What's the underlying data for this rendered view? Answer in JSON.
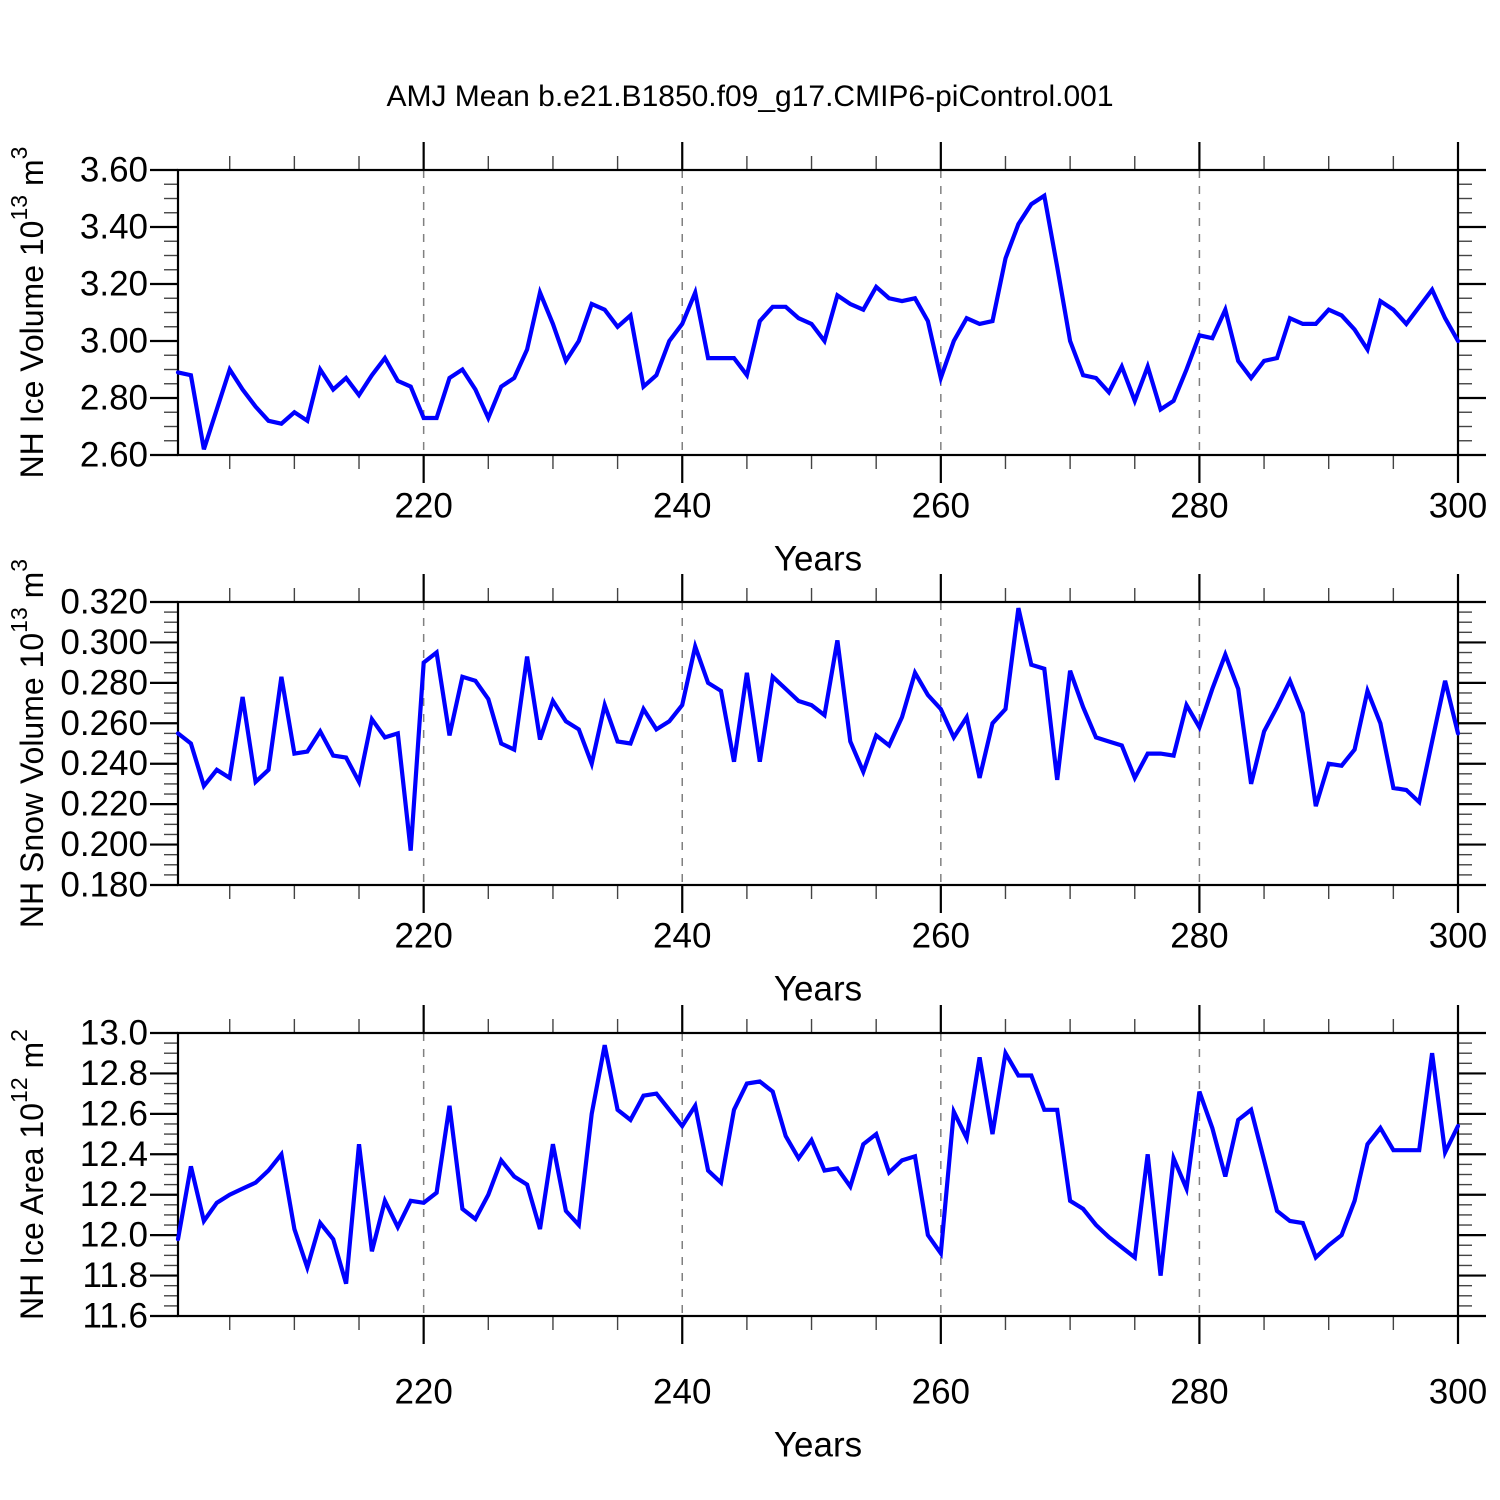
{
  "figure": {
    "title": "AMJ Mean b.e21.B1850.f09_g17.CMIP6-piControl.001",
    "background": "#ffffff",
    "line_color": "#0000ff",
    "gridline_color": "#808080",
    "axis_color": "#000000"
  },
  "chart_data": [
    {
      "id": "nh-ice-volume",
      "type": "line",
      "title": "",
      "xlabel": "Years",
      "ylabel": "NH Ice Volume 10^13 m^3",
      "ylabel_parts": [
        {
          "t": "NH Ice Volume 10",
          "sup": false
        },
        {
          "t": "13",
          "sup": true
        },
        {
          "t": " m",
          "sup": false
        },
        {
          "t": "3",
          "sup": true
        }
      ],
      "xlim": [
        201,
        300
      ],
      "ylim": [
        2.6,
        3.6
      ],
      "y_major_step": 0.2,
      "y_minor_step": 0.05,
      "x_minor_step": 5,
      "grid": "vertical-dashed",
      "x_gridlines": [
        220,
        240,
        260,
        280
      ],
      "xticks": [
        {
          "label": "220",
          "year": 220
        },
        {
          "label": "240",
          "year": 240
        },
        {
          "label": "260",
          "year": 260
        },
        {
          "label": "280",
          "year": 280
        },
        {
          "label": "300",
          "year": 300
        }
      ],
      "yticks": [
        {
          "label": "3.60",
          "value": 3.6
        },
        {
          "label": "3.40",
          "value": 3.4
        },
        {
          "label": "3.20",
          "value": 3.2
        },
        {
          "label": "3.00",
          "value": 3.0
        },
        {
          "label": "2.80",
          "value": 2.8
        },
        {
          "label": "2.60",
          "value": 2.6
        }
      ],
      "years_start": 201,
      "years_end": 300,
      "values": [
        2.89,
        2.88,
        2.62,
        2.76,
        2.9,
        2.83,
        2.77,
        2.72,
        2.71,
        2.75,
        2.72,
        2.9,
        2.83,
        2.87,
        2.81,
        2.88,
        2.94,
        2.86,
        2.84,
        2.73,
        2.73,
        2.87,
        2.9,
        2.83,
        2.73,
        2.84,
        2.87,
        2.97,
        3.17,
        3.06,
        2.93,
        3.0,
        3.13,
        3.11,
        3.05,
        3.09,
        2.84,
        2.88,
        3.0,
        3.06,
        3.17,
        2.94,
        2.94,
        2.94,
        2.88,
        3.07,
        3.12,
        3.12,
        3.08,
        3.06,
        3.0,
        3.16,
        3.13,
        3.11,
        3.19,
        3.15,
        3.14,
        3.15,
        3.07,
        2.87,
        3.0,
        3.08,
        3.06,
        3.07,
        3.29,
        3.41,
        3.48,
        3.51,
        3.26,
        3.0,
        2.88,
        2.87,
        2.82,
        2.91,
        2.79,
        2.91,
        2.76,
        2.79,
        2.9,
        3.02,
        3.01,
        3.11,
        2.93,
        2.87,
        2.93,
        2.94,
        3.08,
        3.06,
        3.06,
        3.11,
        3.09,
        3.04,
        2.97,
        3.14,
        3.11,
        3.06,
        3.12,
        3.18,
        3.08,
        3.0
      ]
    },
    {
      "id": "nh-snow-volume",
      "type": "line",
      "title": "",
      "xlabel": "Years",
      "ylabel": "NH Snow Volume 10^13 m^3",
      "ylabel_parts": [
        {
          "t": "NH Snow Volume 10",
          "sup": false
        },
        {
          "t": "13",
          "sup": true
        },
        {
          "t": " m",
          "sup": false
        },
        {
          "t": "3",
          "sup": true
        }
      ],
      "xlim": [
        201,
        300
      ],
      "ylim": [
        0.18,
        0.32
      ],
      "y_major_step": 0.02,
      "y_minor_step": 0.005,
      "x_minor_step": 5,
      "grid": "vertical-dashed",
      "x_gridlines": [
        220,
        240,
        260,
        280
      ],
      "xticks": [
        {
          "label": "220",
          "year": 220
        },
        {
          "label": "240",
          "year": 240
        },
        {
          "label": "260",
          "year": 260
        },
        {
          "label": "280",
          "year": 280
        },
        {
          "label": "300",
          "year": 300
        }
      ],
      "yticks": [
        {
          "label": "0.320",
          "value": 0.32
        },
        {
          "label": "0.300",
          "value": 0.3
        },
        {
          "label": "0.280",
          "value": 0.28
        },
        {
          "label": "0.260",
          "value": 0.26
        },
        {
          "label": "0.240",
          "value": 0.24
        },
        {
          "label": "0.220",
          "value": 0.22
        },
        {
          "label": "0.200",
          "value": 0.2
        },
        {
          "label": "0.180",
          "value": 0.18
        }
      ],
      "years_start": 201,
      "years_end": 300,
      "values": [
        0.255,
        0.25,
        0.229,
        0.237,
        0.233,
        0.273,
        0.231,
        0.237,
        0.283,
        0.245,
        0.246,
        0.256,
        0.244,
        0.243,
        0.231,
        0.262,
        0.253,
        0.255,
        0.197,
        0.29,
        0.295,
        0.254,
        0.283,
        0.281,
        0.272,
        0.25,
        0.247,
        0.293,
        0.252,
        0.271,
        0.261,
        0.257,
        0.24,
        0.269,
        0.251,
        0.25,
        0.267,
        0.257,
        0.261,
        0.269,
        0.298,
        0.28,
        0.276,
        0.241,
        0.285,
        0.241,
        0.283,
        0.277,
        0.271,
        0.269,
        0.264,
        0.301,
        0.251,
        0.236,
        0.254,
        0.249,
        0.263,
        0.285,
        0.274,
        0.267,
        0.253,
        0.263,
        0.233,
        0.26,
        0.267,
        0.317,
        0.289,
        0.287,
        0.232,
        0.286,
        0.268,
        0.253,
        0.251,
        0.249,
        0.233,
        0.245,
        0.245,
        0.244,
        0.269,
        0.258,
        0.277,
        0.294,
        0.277,
        0.23,
        0.256,
        0.268,
        0.281,
        0.265,
        0.219,
        0.24,
        0.239,
        0.247,
        0.276,
        0.26,
        0.228,
        0.227,
        0.221,
        0.251,
        0.281,
        0.255
      ]
    },
    {
      "id": "nh-ice-area",
      "type": "line",
      "title": "",
      "xlabel": "Years",
      "ylabel": "NH Ice Area 10^12 m^2",
      "ylabel_parts": [
        {
          "t": "NH Ice Area 10",
          "sup": false
        },
        {
          "t": "12",
          "sup": true
        },
        {
          "t": " m",
          "sup": false
        },
        {
          "t": "2",
          "sup": true
        }
      ],
      "xlim": [
        201,
        300
      ],
      "ylim": [
        11.6,
        13.0
      ],
      "y_major_step": 0.2,
      "y_minor_step": 0.05,
      "x_minor_step": 5,
      "grid": "vertical-dashed",
      "x_gridlines": [
        220,
        240,
        260,
        280
      ],
      "xticks": [
        {
          "label": "220",
          "year": 220
        },
        {
          "label": "240",
          "year": 240
        },
        {
          "label": "260",
          "year": 260
        },
        {
          "label": "280",
          "year": 280
        },
        {
          "label": "300",
          "year": 300
        }
      ],
      "yticks": [
        {
          "label": "13.0",
          "value": 13.0
        },
        {
          "label": "12.8",
          "value": 12.8
        },
        {
          "label": "12.6",
          "value": 12.6
        },
        {
          "label": "12.4",
          "value": 12.4
        },
        {
          "label": "12.2",
          "value": 12.2
        },
        {
          "label": "12.0",
          "value": 12.0
        },
        {
          "label": "11.8",
          "value": 11.8
        },
        {
          "label": "11.6",
          "value": 11.6
        }
      ],
      "years_start": 201,
      "years_end": 300,
      "values": [
        11.98,
        12.34,
        12.07,
        12.16,
        12.2,
        12.23,
        12.26,
        12.32,
        12.4,
        12.03,
        11.84,
        12.06,
        11.98,
        11.76,
        12.45,
        11.92,
        12.17,
        12.04,
        12.17,
        12.16,
        12.21,
        12.64,
        12.13,
        12.08,
        12.2,
        12.37,
        12.29,
        12.25,
        12.03,
        12.45,
        12.12,
        12.05,
        12.6,
        12.94,
        12.62,
        12.57,
        12.69,
        12.7,
        12.62,
        12.54,
        12.64,
        12.32,
        12.26,
        12.62,
        12.75,
        12.76,
        12.71,
        12.49,
        12.38,
        12.47,
        12.32,
        12.33,
        12.24,
        12.45,
        12.5,
        12.31,
        12.37,
        12.39,
        12.0,
        11.91,
        12.61,
        12.48,
        12.88,
        12.5,
        12.9,
        12.79,
        12.79,
        12.62,
        12.62,
        12.17,
        12.13,
        12.05,
        11.99,
        11.94,
        11.89,
        12.4,
        11.8,
        12.38,
        12.23,
        12.71,
        12.53,
        12.29,
        12.57,
        12.62,
        12.37,
        12.12,
        12.07,
        12.06,
        11.89,
        11.95,
        12.0,
        12.17,
        12.45,
        12.53,
        12.42,
        12.42,
        12.42,
        12.9,
        12.41,
        12.54
      ]
    }
  ]
}
